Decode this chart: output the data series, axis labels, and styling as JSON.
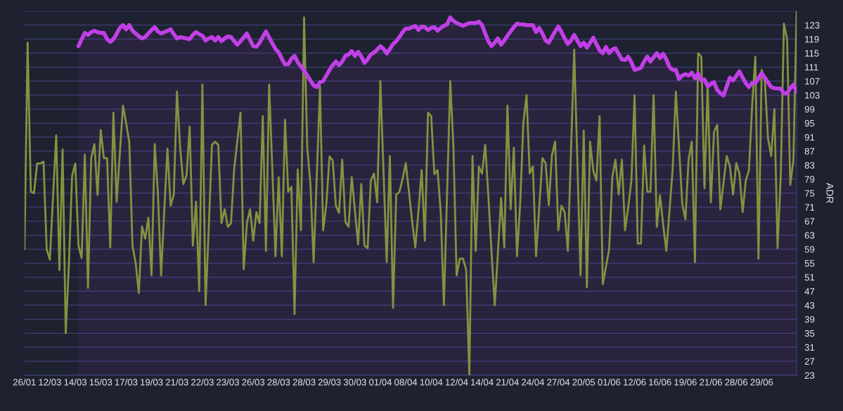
{
  "chart_data": {
    "type": "line",
    "ylabel": "ADR",
    "grid": "y",
    "categories": [
      "26/01",
      null,
      null,
      null,
      null,
      null,
      null,
      null,
      "12/03",
      null,
      null,
      null,
      null,
      null,
      null,
      null,
      "14/03",
      null,
      null,
      null,
      null,
      null,
      null,
      null,
      "15/03",
      null,
      null,
      null,
      null,
      null,
      null,
      null,
      "17/03",
      null,
      null,
      null,
      null,
      null,
      null,
      null,
      "19/03",
      null,
      null,
      null,
      null,
      null,
      null,
      null,
      "21/03",
      null,
      null,
      null,
      null,
      null,
      null,
      null,
      "22/03",
      null,
      null,
      null,
      null,
      null,
      null,
      null,
      "23/03",
      null,
      null,
      null,
      null,
      null,
      null,
      null,
      "26/03",
      null,
      null,
      null,
      null,
      null,
      null,
      null,
      "28/03",
      null,
      null,
      null,
      null,
      null,
      null,
      null,
      "28/03",
      null,
      null,
      null,
      null,
      null,
      null,
      null,
      "29/03",
      null,
      null,
      null,
      null,
      null,
      null,
      null,
      "30/03",
      null,
      null,
      null,
      null,
      null,
      null,
      null,
      "01/04",
      null,
      null,
      null,
      null,
      null,
      null,
      null,
      "08/04",
      null,
      null,
      null,
      null,
      null,
      null,
      null,
      "10/04",
      null,
      null,
      null,
      null,
      null,
      null,
      null,
      "12/04",
      null,
      null,
      null,
      null,
      null,
      null,
      null,
      "14/04",
      null,
      null,
      null,
      null,
      null,
      null,
      null,
      "21/04",
      null,
      null,
      null,
      null,
      null,
      null,
      null,
      "24/04",
      null,
      null,
      null,
      null,
      null,
      null,
      null,
      "27/04",
      null,
      null,
      null,
      null,
      null,
      null,
      null,
      "20/05",
      null,
      null,
      null,
      null,
      null,
      null,
      null,
      "01/06",
      null,
      null,
      null,
      null,
      null,
      null,
      null,
      "12/06",
      null,
      null,
      null,
      null,
      null,
      null,
      null,
      "16/06",
      null,
      null,
      null,
      null,
      null,
      null,
      null,
      "19/06",
      null,
      null,
      null,
      null,
      null,
      null,
      null,
      "21/06",
      null,
      null,
      null,
      null,
      null,
      null,
      null,
      "28/06",
      null,
      null,
      null,
      null,
      null,
      null,
      null,
      "29/06",
      null,
      null,
      null,
      null,
      null,
      null,
      null,
      null,
      null,
      null,
      null
    ],
    "ylim": [
      23,
      127
    ],
    "yticks": [
      23,
      27,
      31,
      35,
      39,
      43,
      47,
      51,
      55,
      59,
      63,
      67,
      71,
      75,
      79,
      83,
      87,
      91,
      95,
      99,
      103,
      107,
      111,
      115,
      119,
      123,
      {
        "value": 127,
        "label": null
      }
    ],
    "series": [
      {
        "type": "area",
        "color": "#c13fe6",
        "values": [
          null,
          null,
          null,
          null,
          null,
          null,
          null,
          null,
          null,
          null,
          null,
          null,
          null,
          null,
          null,
          null,
          null,
          117,
          119,
          120.8,
          120.2,
          121,
          121.4,
          121,
          120.8,
          120.8,
          119,
          118.2,
          119,
          120.5,
          122.2,
          123,
          121.8,
          123,
          121.4,
          120.6,
          119.8,
          119.2,
          119.6,
          120.6,
          121.6,
          122.4,
          121.2,
          120.6,
          121,
          121.4,
          121.8,
          120.4,
          119.2,
          119.6,
          119.4,
          119.2,
          119,
          120.2,
          121,
          120.4,
          120,
          118.6,
          119.2,
          119.6,
          118.6,
          119.6,
          118.4,
          119.2,
          119.8,
          119.6,
          118.4,
          117.4,
          118.4,
          119.5,
          120.6,
          118.8,
          117,
          116.8,
          118,
          119.6,
          121.2,
          119.5,
          117.8,
          116.2,
          115.2,
          113.4,
          111.8,
          111.8,
          113.4,
          114.2,
          112.4,
          111.2,
          110,
          108.6,
          107.2,
          105.8,
          105.3,
          106.7,
          107,
          108.6,
          110.2,
          111.6,
          112.6,
          111.6,
          112.6,
          114.2,
          114.6,
          115.6,
          114.2,
          115.4,
          114,
          112.2,
          113.2,
          114.6,
          115.2,
          116,
          117,
          116.2,
          114.9,
          116.2,
          117.6,
          118.4,
          119.6,
          121,
          122,
          122,
          122.4,
          122.8,
          121.6,
          122.6,
          122.4,
          121.6,
          122.2,
          122.4,
          121.4,
          122.2,
          122.8,
          123.2,
          125.2,
          124.2,
          123.6,
          123.2,
          122.8,
          123.2,
          123.6,
          123.6,
          123.6,
          124,
          123,
          120.6,
          118.4,
          117,
          118,
          119.2,
          117.4,
          118.6,
          120,
          121.2,
          122.4,
          123.4,
          123.2,
          123.2,
          123,
          123,
          123,
          121,
          122.2,
          120.6,
          118.6,
          118,
          119.6,
          121.2,
          122.6,
          121,
          119.2,
          117.6,
          118.6,
          120.2,
          118.6,
          117,
          118,
          116.6,
          118,
          119.4,
          117.6,
          115.8,
          115,
          116.8,
          115,
          116,
          116.4,
          114.8,
          113.2,
          113,
          114,
          112.4,
          110.2,
          110.5,
          110.8,
          112.6,
          114,
          112.6,
          113.8,
          115,
          113.6,
          114.8,
          113.2,
          111,
          110.2,
          110.2,
          107.6,
          108.6,
          109,
          108.6,
          109.4,
          107.8,
          109.2,
          107.2,
          107.5,
          105.5,
          106.2,
          106.7,
          104.5,
          103.5,
          102.9,
          105.5,
          108,
          107.2,
          108.5,
          109.8,
          108,
          106.4,
          105.3,
          106.5,
          106.5,
          107.8,
          109.3,
          108,
          106.6,
          105.3,
          105,
          104.9,
          104.9,
          103.5,
          103.5,
          105,
          106,
          104
        ]
      },
      {
        "color": "#84933f",
        "values": [
          59,
          118,
          75.5,
          75,
          83.5,
          83.5,
          84,
          59,
          56,
          74,
          91.5,
          53,
          87.5,
          35,
          55,
          80,
          83.5,
          60,
          56.5,
          86,
          48,
          85,
          89,
          74.5,
          93,
          85,
          85,
          59.5,
          98,
          72.5,
          86,
          100,
          95,
          89.5,
          60,
          55,
          46.5,
          65.5,
          62,
          68,
          51.5,
          89,
          75,
          51.5,
          70,
          87.7,
          71.4,
          74.6,
          104,
          88,
          77.6,
          80,
          94,
          60,
          72.6,
          47,
          106,
          43,
          65,
          88.8,
          89.7,
          88.8,
          66.4,
          70.4,
          65.4,
          66.4,
          82,
          90,
          98,
          53.3,
          66.4,
          70.4,
          61.4,
          69.6,
          66.4,
          97,
          58.5,
          106,
          82,
          57,
          79.6,
          57,
          96,
          75.4,
          76.8,
          40.5,
          81.8,
          64.4,
          125.2,
          87.9,
          77.6,
          55.3,
          80,
          105.5,
          64.4,
          71.8,
          85.5,
          84.4,
          71.4,
          69.4,
          84.6,
          66.8,
          65.4,
          79.6,
          70,
          60.4,
          77.6,
          60,
          59.3,
          78.6,
          80.6,
          72.4,
          107,
          81,
          55.3,
          85.6,
          42.3,
          74.6,
          75.4,
          79,
          83.6,
          75.4,
          67,
          59.5,
          70,
          81.6,
          61.4,
          98,
          97,
          80.4,
          81.6,
          69.6,
          43,
          75,
          107,
          88,
          51.5,
          56.3,
          56.3,
          53.2,
          23,
          85.6,
          58.5,
          82.6,
          80.6,
          88.8,
          74,
          58,
          43,
          58,
          73.6,
          59.5,
          100,
          70.4,
          88,
          57,
          72,
          95,
          103,
          80.6,
          82.6,
          57,
          71,
          85,
          83.6,
          71.6,
          85.8,
          89.7,
          64.4,
          71.4,
          69.6,
          58.5,
          87,
          116,
          84,
          51.5,
          92.9,
          48.1,
          89.7,
          81.4,
          78.6,
          97,
          49,
          54,
          59,
          79.6,
          84.6,
          74.6,
          84.6,
          64.4,
          71,
          78.6,
          103,
          60.6,
          60.6,
          88.6,
          75.4,
          75.4,
          103,
          65.4,
          74.4,
          66,
          58.5,
          70,
          82,
          104,
          88,
          72,
          67.5,
          84.6,
          89.7,
          55.3,
          115,
          114,
          76.4,
          105.7,
          72.4,
          92.5,
          94.5,
          70.4,
          78,
          85.6,
          82.6,
          74.6,
          83.6,
          80.6,
          69.6,
          78.6,
          81.6,
          100,
          114,
          56.3,
          110.2,
          107,
          90.6,
          85.6,
          99,
          59.3,
          80,
          123.4,
          119,
          77.4,
          84.6,
          127
        ]
      }
    ]
  }
}
